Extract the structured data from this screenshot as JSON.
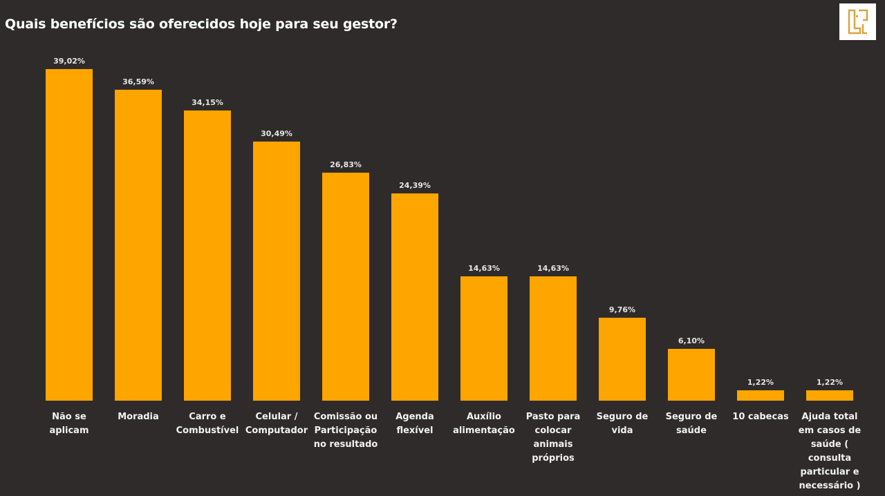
{
  "header": {
    "title": "Quais benefícios são oferecidos hoje para seu gestor?",
    "logo_icon": "brand-logo-icon"
  },
  "colors": {
    "background": "#2f2b2b",
    "bar": "#ffa500",
    "logo_accent": "#d9a441"
  },
  "chart_data": {
    "type": "bar",
    "title": "Quais benefícios são oferecidos hoje para seu gestor?",
    "xlabel": "",
    "ylabel": "",
    "grid": false,
    "legend": "none",
    "ylim": [
      0,
      40
    ],
    "categories": [
      [
        "Não se",
        "aplicam"
      ],
      [
        "Moradia"
      ],
      [
        "Carro e",
        "Combustível"
      ],
      [
        "Celular /",
        "Computador"
      ],
      [
        "Comissão ou",
        "Participação",
        "no resultado"
      ],
      [
        "Agenda",
        "flexível"
      ],
      [
        "Auxílio",
        "alimentação"
      ],
      [
        "Pasto para",
        "colocar",
        "animais",
        "próprios"
      ],
      [
        "Seguro de",
        "vida"
      ],
      [
        "Seguro de",
        "saúde"
      ],
      [
        "10 cabecas"
      ],
      [
        "Ajuda total",
        "em casos de",
        "saúde (",
        "consulta",
        "particular e",
        "necessário )"
      ]
    ],
    "values": [
      39.02,
      36.59,
      34.15,
      30.49,
      26.83,
      24.39,
      14.63,
      14.63,
      9.76,
      6.1,
      1.22,
      1.22
    ],
    "value_labels": [
      "39,02%",
      "36,59%",
      "34,15%",
      "30,49%",
      "26,83%",
      "24,39%",
      "14,63%",
      "14,63%",
      "9,76%",
      "6,10%",
      "1,22%",
      "1,22%"
    ]
  }
}
